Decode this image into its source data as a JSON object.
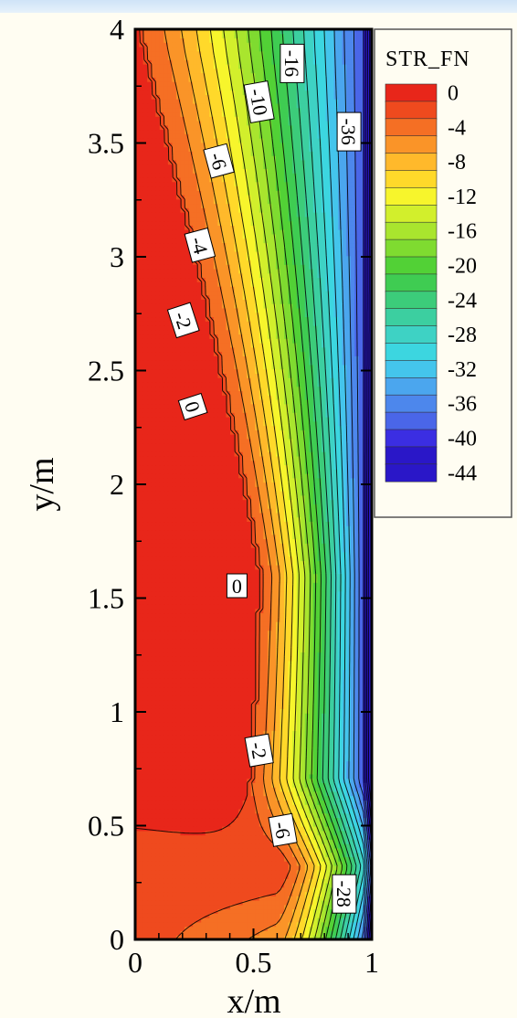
{
  "chart_data": {
    "type": "contour",
    "xlabel": "x/m",
    "ylabel": "y/m",
    "xlim": [
      0,
      1
    ],
    "ylim": [
      0,
      4
    ],
    "x_ticks": [
      "0",
      "0.5",
      "1"
    ],
    "y_ticks": [
      "0",
      "0.5",
      "1",
      "1.5",
      "2",
      "2.5",
      "3",
      "3.5",
      "4"
    ],
    "legend": {
      "title": "STR_FN",
      "position": "top-right",
      "levels": [
        "0",
        "-4",
        "-8",
        "-12",
        "-16",
        "-20",
        "-24",
        "-28",
        "-32",
        "-36",
        "-40",
        "-44"
      ]
    },
    "contour_labels": [
      "-16",
      "-10",
      "-6",
      "-4",
      "-2",
      "0",
      "0",
      "-2",
      "-6",
      "-28",
      "-36"
    ],
    "colors": {
      "0": "#e8261a",
      "-2": "#ef4a1e",
      "-4": "#f56f24",
      "-6": "#fa9428",
      "-8": "#ffb92b",
      "-10": "#ffd92a",
      "-12": "#f7f52c",
      "-14": "#d2ef2c",
      "-16": "#a9e52e",
      "-18": "#7fdb30",
      "-20": "#52d136",
      "-22": "#3fcc52",
      "-24": "#3ccc7a",
      "-26": "#3ccfa0",
      "-28": "#3ed2c4",
      "-30": "#3cd6e0",
      "-32": "#44c5ec",
      "-34": "#4ba6ee",
      "-36": "#4d87ec",
      "-38": "#4a66e8",
      "-40": "#3b2ee2",
      "-44": "#2a17c8"
    }
  }
}
